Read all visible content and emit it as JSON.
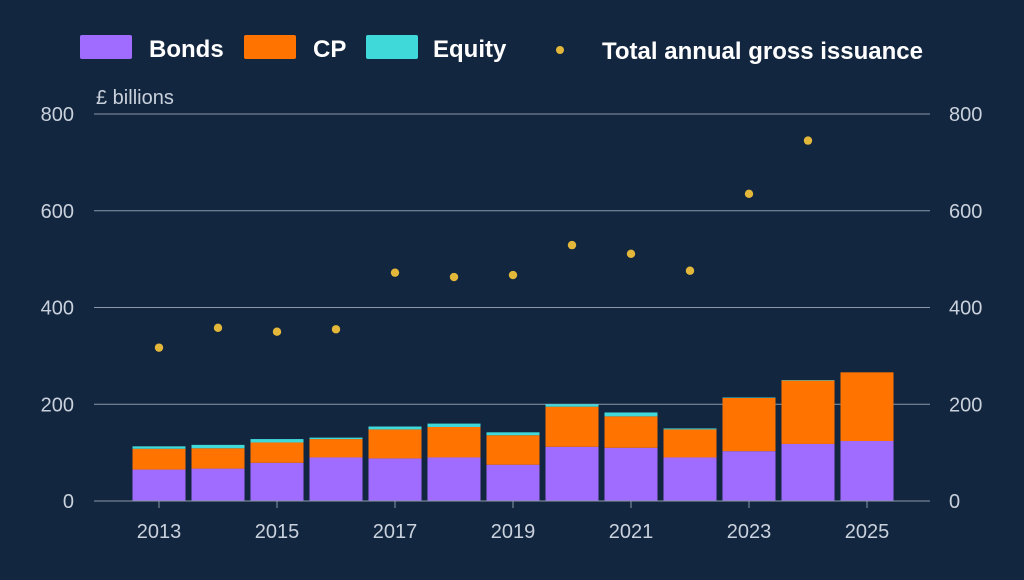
{
  "colors": {
    "background": "#13263f",
    "bonds": "#a06cff",
    "cp": "#ff7400",
    "equity": "#3fd9da",
    "total": "#e3b83a",
    "grid": "#8a98aa",
    "axis_text": "#c9d1dc"
  },
  "legend": {
    "bonds": "Bonds",
    "cp": "CP",
    "equity": "Equity",
    "total": "Total annual gross issuance"
  },
  "chart_data": {
    "type": "bar",
    "stacked": true,
    "title": "",
    "unit_label": "£ billions",
    "xlabel": "",
    "ylabel": "",
    "ylim": [
      0,
      800
    ],
    "y_ticks": [
      0,
      200,
      400,
      600,
      800
    ],
    "x_tick_labels": [
      "2013",
      "2015",
      "2017",
      "2019",
      "2021",
      "2023",
      "2025"
    ],
    "grid": true,
    "legend_position": "top",
    "categories": [
      "2013",
      "2014",
      "2015",
      "2016",
      "2017",
      "2018",
      "2019",
      "2020",
      "2021",
      "2022",
      "2023",
      "2024",
      "2025"
    ],
    "series": [
      {
        "name": "Bonds",
        "values": [
          65,
          67,
          79,
          90,
          88,
          90,
          75,
          112,
          110,
          90,
          103,
          118,
          124
        ]
      },
      {
        "name": "CP",
        "values": [
          43,
          42,
          42,
          38,
          60,
          63,
          61,
          83,
          65,
          58,
          110,
          131,
          142
        ]
      },
      {
        "name": "Equity",
        "values": [
          5,
          7,
          7,
          3,
          6,
          7,
          6,
          5,
          8,
          2,
          1,
          1,
          0
        ]
      }
    ],
    "scatter_series": {
      "name": "Total annual gross issuance",
      "values": [
        317,
        358,
        350,
        355,
        472,
        463,
        467,
        529,
        511,
        476,
        635,
        745,
        null
      ]
    }
  }
}
